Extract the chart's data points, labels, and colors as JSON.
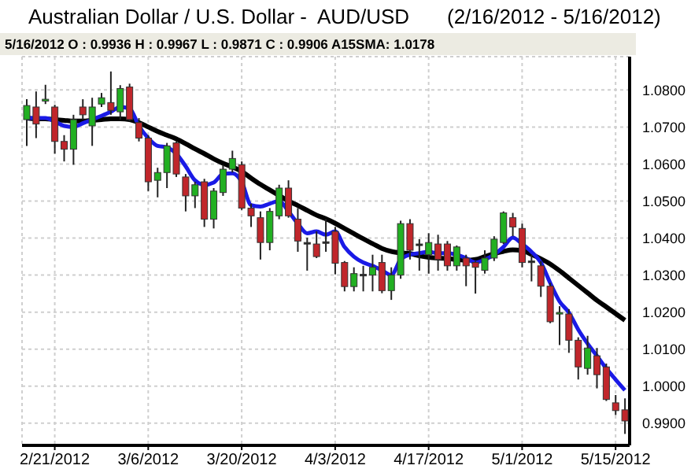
{
  "chart_data": {
    "type": "candlestick",
    "title": "Australian Dollar / U.S. Dollar -  AUD/USD",
    "subtitle": "(2/16/2012 - 5/16/2012)",
    "annotations": [
      "5/16/2012 O : 0.9936 H : 0.9967 L : 0.9871 C : 0.9906 A15SMA: 1.0178"
    ],
    "categories": [
      null,
      null,
      null,
      "2/21/2012",
      null,
      null,
      null,
      null,
      null,
      null,
      null,
      null,
      null,
      "3/6/2012",
      null,
      null,
      null,
      null,
      null,
      null,
      null,
      null,
      null,
      "3/20/2012",
      null,
      null,
      null,
      null,
      null,
      null,
      null,
      null,
      null,
      "4/3/2012",
      null,
      null,
      null,
      null,
      null,
      null,
      null,
      null,
      null,
      "4/17/2012",
      null,
      null,
      null,
      null,
      null,
      null,
      null,
      null,
      null,
      "5/1/2012",
      null,
      null,
      null,
      null,
      null,
      null,
      null,
      null,
      null,
      "5/15/2012",
      null
    ],
    "colors": [
      "#22b022",
      "#c0262b",
      "#22b022",
      "#c0262b",
      "#c0262b",
      "#22b022",
      "#c0262b",
      "#22b022",
      "#22b022",
      "#c0262b",
      "#22b022",
      "#c0262b",
      "#c0262b",
      "#c0262b",
      "#22b022",
      "#22b022",
      "#c0262b",
      "#c0262b",
      "#22b022",
      "#c0262b",
      "#22b022",
      "#22b022",
      "#22b022",
      "#c0262b",
      "#c0262b",
      "#c0262b",
      "#22b022",
      "#22b022",
      "#c0262b",
      "#c0262b",
      "#222222",
      "#c0262b",
      "#222222",
      "#c0262b",
      "#c0262b",
      "#22b022",
      "#222222",
      "#22b022",
      "#c0262b",
      "#22b022",
      "#22b022",
      "#c0262b",
      "#222222",
      "#22b022",
      "#c0262b",
      "#c0262b",
      "#22b022",
      "#c0262b",
      "#c0262b",
      "#22b022",
      "#22b022",
      "#22b022",
      "#c0262b",
      "#c0262b",
      "#222222",
      "#c0262b",
      "#c0262b",
      "#22b022",
      "#c0262b",
      "#c0262b",
      "#22b022",
      "#c0262b",
      "#c0262b",
      "#c0262b",
      "#c0262b"
    ],
    "ohlc": [
      [
        1.072,
        1.0775,
        1.0649,
        1.0758
      ],
      [
        1.0754,
        1.0796,
        1.067,
        1.0708
      ],
      [
        1.077,
        1.0814,
        1.0762,
        1.0775
      ],
      [
        1.0754,
        1.076,
        1.0628,
        1.0661
      ],
      [
        1.0661,
        1.0678,
        1.0607,
        1.064
      ],
      [
        1.064,
        1.0733,
        1.0598,
        1.072
      ],
      [
        1.0754,
        1.0775,
        1.072,
        1.0733
      ],
      [
        1.0703,
        1.0779,
        1.0649,
        1.0754
      ],
      [
        1.0762,
        1.0792,
        1.0754,
        1.0779
      ],
      [
        1.0766,
        1.085,
        1.0733,
        1.0745
      ],
      [
        1.0741,
        1.0813,
        1.072,
        1.0804
      ],
      [
        1.0808,
        1.0817,
        1.0716,
        1.072
      ],
      [
        1.0712,
        1.0724,
        1.0661,
        1.067
      ],
      [
        1.067,
        1.0678,
        1.0527,
        1.0552
      ],
      [
        1.0556,
        1.059,
        1.051,
        1.0577
      ],
      [
        1.0577,
        1.0657,
        1.0535,
        1.0649
      ],
      [
        1.0657,
        1.0661,
        1.0565,
        1.0573
      ],
      [
        1.0565,
        1.0573,
        1.0472,
        1.0514
      ],
      [
        1.0514,
        1.0552,
        1.0481,
        1.0544
      ],
      [
        1.0552,
        1.056,
        1.043,
        1.0451
      ],
      [
        1.0451,
        1.0535,
        1.0426,
        1.0527
      ],
      [
        1.0523,
        1.0598,
        1.0514,
        1.0586
      ],
      [
        1.0586,
        1.0636,
        1.0577,
        1.0615
      ],
      [
        1.0598,
        1.0607,
        1.0476,
        1.0481
      ],
      [
        1.0481,
        1.0493,
        1.043,
        1.046
      ],
      [
        1.0455,
        1.0472,
        1.0342,
        1.0388
      ],
      [
        1.0388,
        1.0481,
        1.0367,
        1.0472
      ],
      [
        1.046,
        1.0544,
        1.0451,
        1.0535
      ],
      [
        1.0535,
        1.0556,
        1.0455,
        1.046
      ],
      [
        1.0451,
        1.0481,
        1.0363,
        1.0392
      ],
      [
        1.0388,
        1.0401,
        1.0312,
        1.0384
      ],
      [
        1.0384,
        1.0418,
        1.0346,
        1.035
      ],
      [
        1.039,
        1.0451,
        1.0363,
        1.0388
      ],
      [
        1.0418,
        1.043,
        1.0302,
        1.0332
      ],
      [
        1.0334,
        1.0338,
        1.0256,
        1.0269
      ],
      [
        1.0269,
        1.0321,
        1.0256,
        1.0304
      ],
      [
        1.03,
        1.0325,
        1.0256,
        1.0302
      ],
      [
        1.03,
        1.0355,
        1.0256,
        1.0321
      ],
      [
        1.0334,
        1.0355,
        1.0251,
        1.0258
      ],
      [
        1.0258,
        1.0321,
        1.0233,
        1.03
      ],
      [
        1.03,
        1.0447,
        1.029,
        1.0439
      ],
      [
        1.0439,
        1.0451,
        1.0342,
        1.0367
      ],
      [
        1.0384,
        1.0397,
        1.0312,
        1.038
      ],
      [
        1.0355,
        1.0413,
        1.0304,
        1.0388
      ],
      [
        1.0384,
        1.0409,
        1.0312,
        1.0342
      ],
      [
        1.0384,
        1.0392,
        1.0312,
        1.0325
      ],
      [
        1.0325,
        1.038,
        1.0312,
        1.0376
      ],
      [
        1.0346,
        1.0355,
        1.027,
        1.0325
      ],
      [
        1.0334,
        1.0338,
        1.025,
        1.0321
      ],
      [
        1.0313,
        1.0367,
        1.0304,
        1.0346
      ],
      [
        1.0346,
        1.0405,
        1.0338,
        1.0397
      ],
      [
        1.0388,
        1.0472,
        1.0384,
        1.0468
      ],
      [
        1.0455,
        1.0468,
        1.0405,
        1.043
      ],
      [
        1.0426,
        1.0439,
        1.0321,
        1.0334
      ],
      [
        1.0338,
        1.0355,
        1.0283,
        1.0334
      ],
      [
        1.0325,
        1.0338,
        1.0241,
        1.027
      ],
      [
        1.027,
        1.0279,
        1.017,
        1.0174
      ],
      [
        1.0195,
        1.0216,
        1.0111,
        1.0199
      ],
      [
        1.0195,
        1.0208,
        1.009,
        1.0124
      ],
      [
        1.0124,
        1.0132,
        1.0018,
        1.0052
      ],
      [
        1.0048,
        1.0136,
        1.0031,
        1.0103
      ],
      [
        1.0082,
        1.0103,
        0.9994,
        1.0031
      ],
      [
        1.0052,
        1.0061,
        0.996,
        0.9964
      ],
      [
        0.9955,
        0.9976,
        0.9922,
        0.9934
      ],
      [
        0.9936,
        0.9967,
        0.9871,
        0.9906
      ]
    ],
    "series": [
      {
        "type": "line",
        "color": "#000000",
        "values": [
          1.0724,
          1.0722,
          1.0722,
          1.072,
          1.0718,
          1.0716,
          1.0716,
          1.0718,
          1.072,
          1.0722,
          1.0722,
          1.072,
          1.0712,
          1.07,
          1.0688,
          1.0678,
          1.0668,
          1.0655,
          1.0641,
          1.0628,
          1.0614,
          1.0602,
          1.0592,
          1.058,
          1.0562,
          1.0545,
          1.053,
          1.0515,
          1.05,
          1.0488,
          1.0475,
          1.0462,
          1.0452,
          1.044,
          1.0426,
          1.0412,
          1.0398,
          1.0385,
          1.0372,
          1.0364,
          1.036,
          1.0358,
          1.0352,
          1.0348,
          1.0346,
          1.0345,
          1.0342,
          1.034,
          1.0342,
          1.035,
          1.0358,
          1.0364,
          1.0368,
          1.0366,
          1.0356,
          1.0344,
          1.033,
          1.0312,
          1.0292,
          1.0272,
          1.0252,
          1.0232,
          1.0214,
          1.0196,
          1.0178
        ]
      },
      {
        "type": "line",
        "color": "#1a1ae6",
        "values": [
          1.0724,
          1.0724,
          1.0724,
          1.0715,
          1.0703,
          1.07,
          1.071,
          1.072,
          1.073,
          1.0741,
          1.0754,
          1.075,
          1.0703,
          1.067,
          1.0649,
          1.0645,
          1.0628,
          1.0594,
          1.0556,
          1.0544,
          1.055,
          1.0573,
          1.0575,
          1.0552,
          1.0489,
          1.0485,
          1.0493,
          1.05,
          1.0472,
          1.0439,
          1.0413,
          1.0418,
          1.0409,
          1.0418,
          1.0376,
          1.035,
          1.0334,
          1.0325,
          1.0313,
          1.03,
          1.0342,
          1.0355,
          1.0359,
          1.0363,
          1.0359,
          1.0359,
          1.0355,
          1.0346,
          1.0334,
          1.0342,
          1.0355,
          1.0376,
          1.0401,
          1.0384,
          1.0363,
          1.0334,
          1.0279,
          1.0229,
          1.0199,
          1.0153,
          1.0115,
          1.0082,
          1.0048,
          1.0018,
          0.9989
        ]
      }
    ],
    "ylim": [
      0.984,
      1.089
    ],
    "yticks": [
      {
        "value": 0.99,
        "label": "0.9900"
      },
      {
        "value": 1.0,
        "label": "1.0000"
      },
      {
        "value": 1.01,
        "label": "1.0100"
      },
      {
        "value": 1.02,
        "label": "1.0200"
      },
      {
        "value": 1.03,
        "label": "1.0300"
      },
      {
        "value": 1.04,
        "label": "1.0400"
      },
      {
        "value": 1.05,
        "label": "1.0500"
      },
      {
        "value": 1.06,
        "label": "1.0600"
      },
      {
        "value": 1.07,
        "label": "1.0700"
      },
      {
        "value": 1.08,
        "label": "1.0800"
      }
    ],
    "grid": true
  }
}
